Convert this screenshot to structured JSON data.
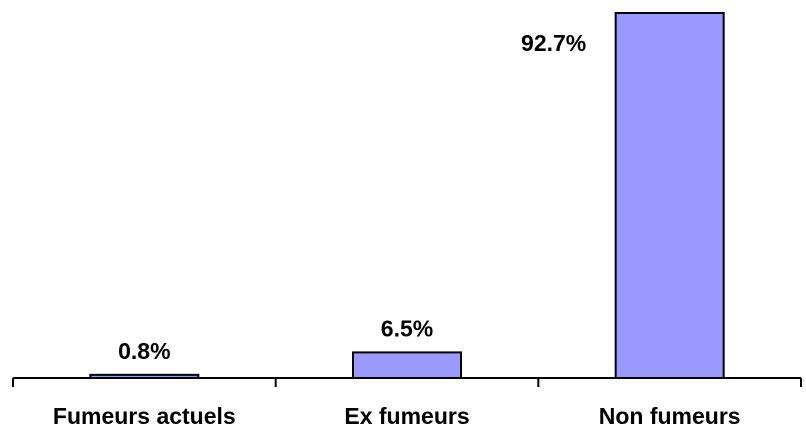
{
  "chart_data": {
    "type": "bar",
    "title": "",
    "xlabel": "",
    "ylabel": "",
    "categories": [
      "Fumeurs actuels",
      "Ex fumeurs",
      "Non fumeurs"
    ],
    "values": [
      0.8,
      6.5,
      92.7
    ],
    "data_labels": [
      "0.8%",
      "6.5%",
      "92.7%"
    ],
    "ylim": [
      0,
      92.7
    ],
    "y_axis_visible": false,
    "grid": false,
    "legend": "none",
    "bar_color": "#9999ff",
    "bar_edge_color": "#000000"
  }
}
